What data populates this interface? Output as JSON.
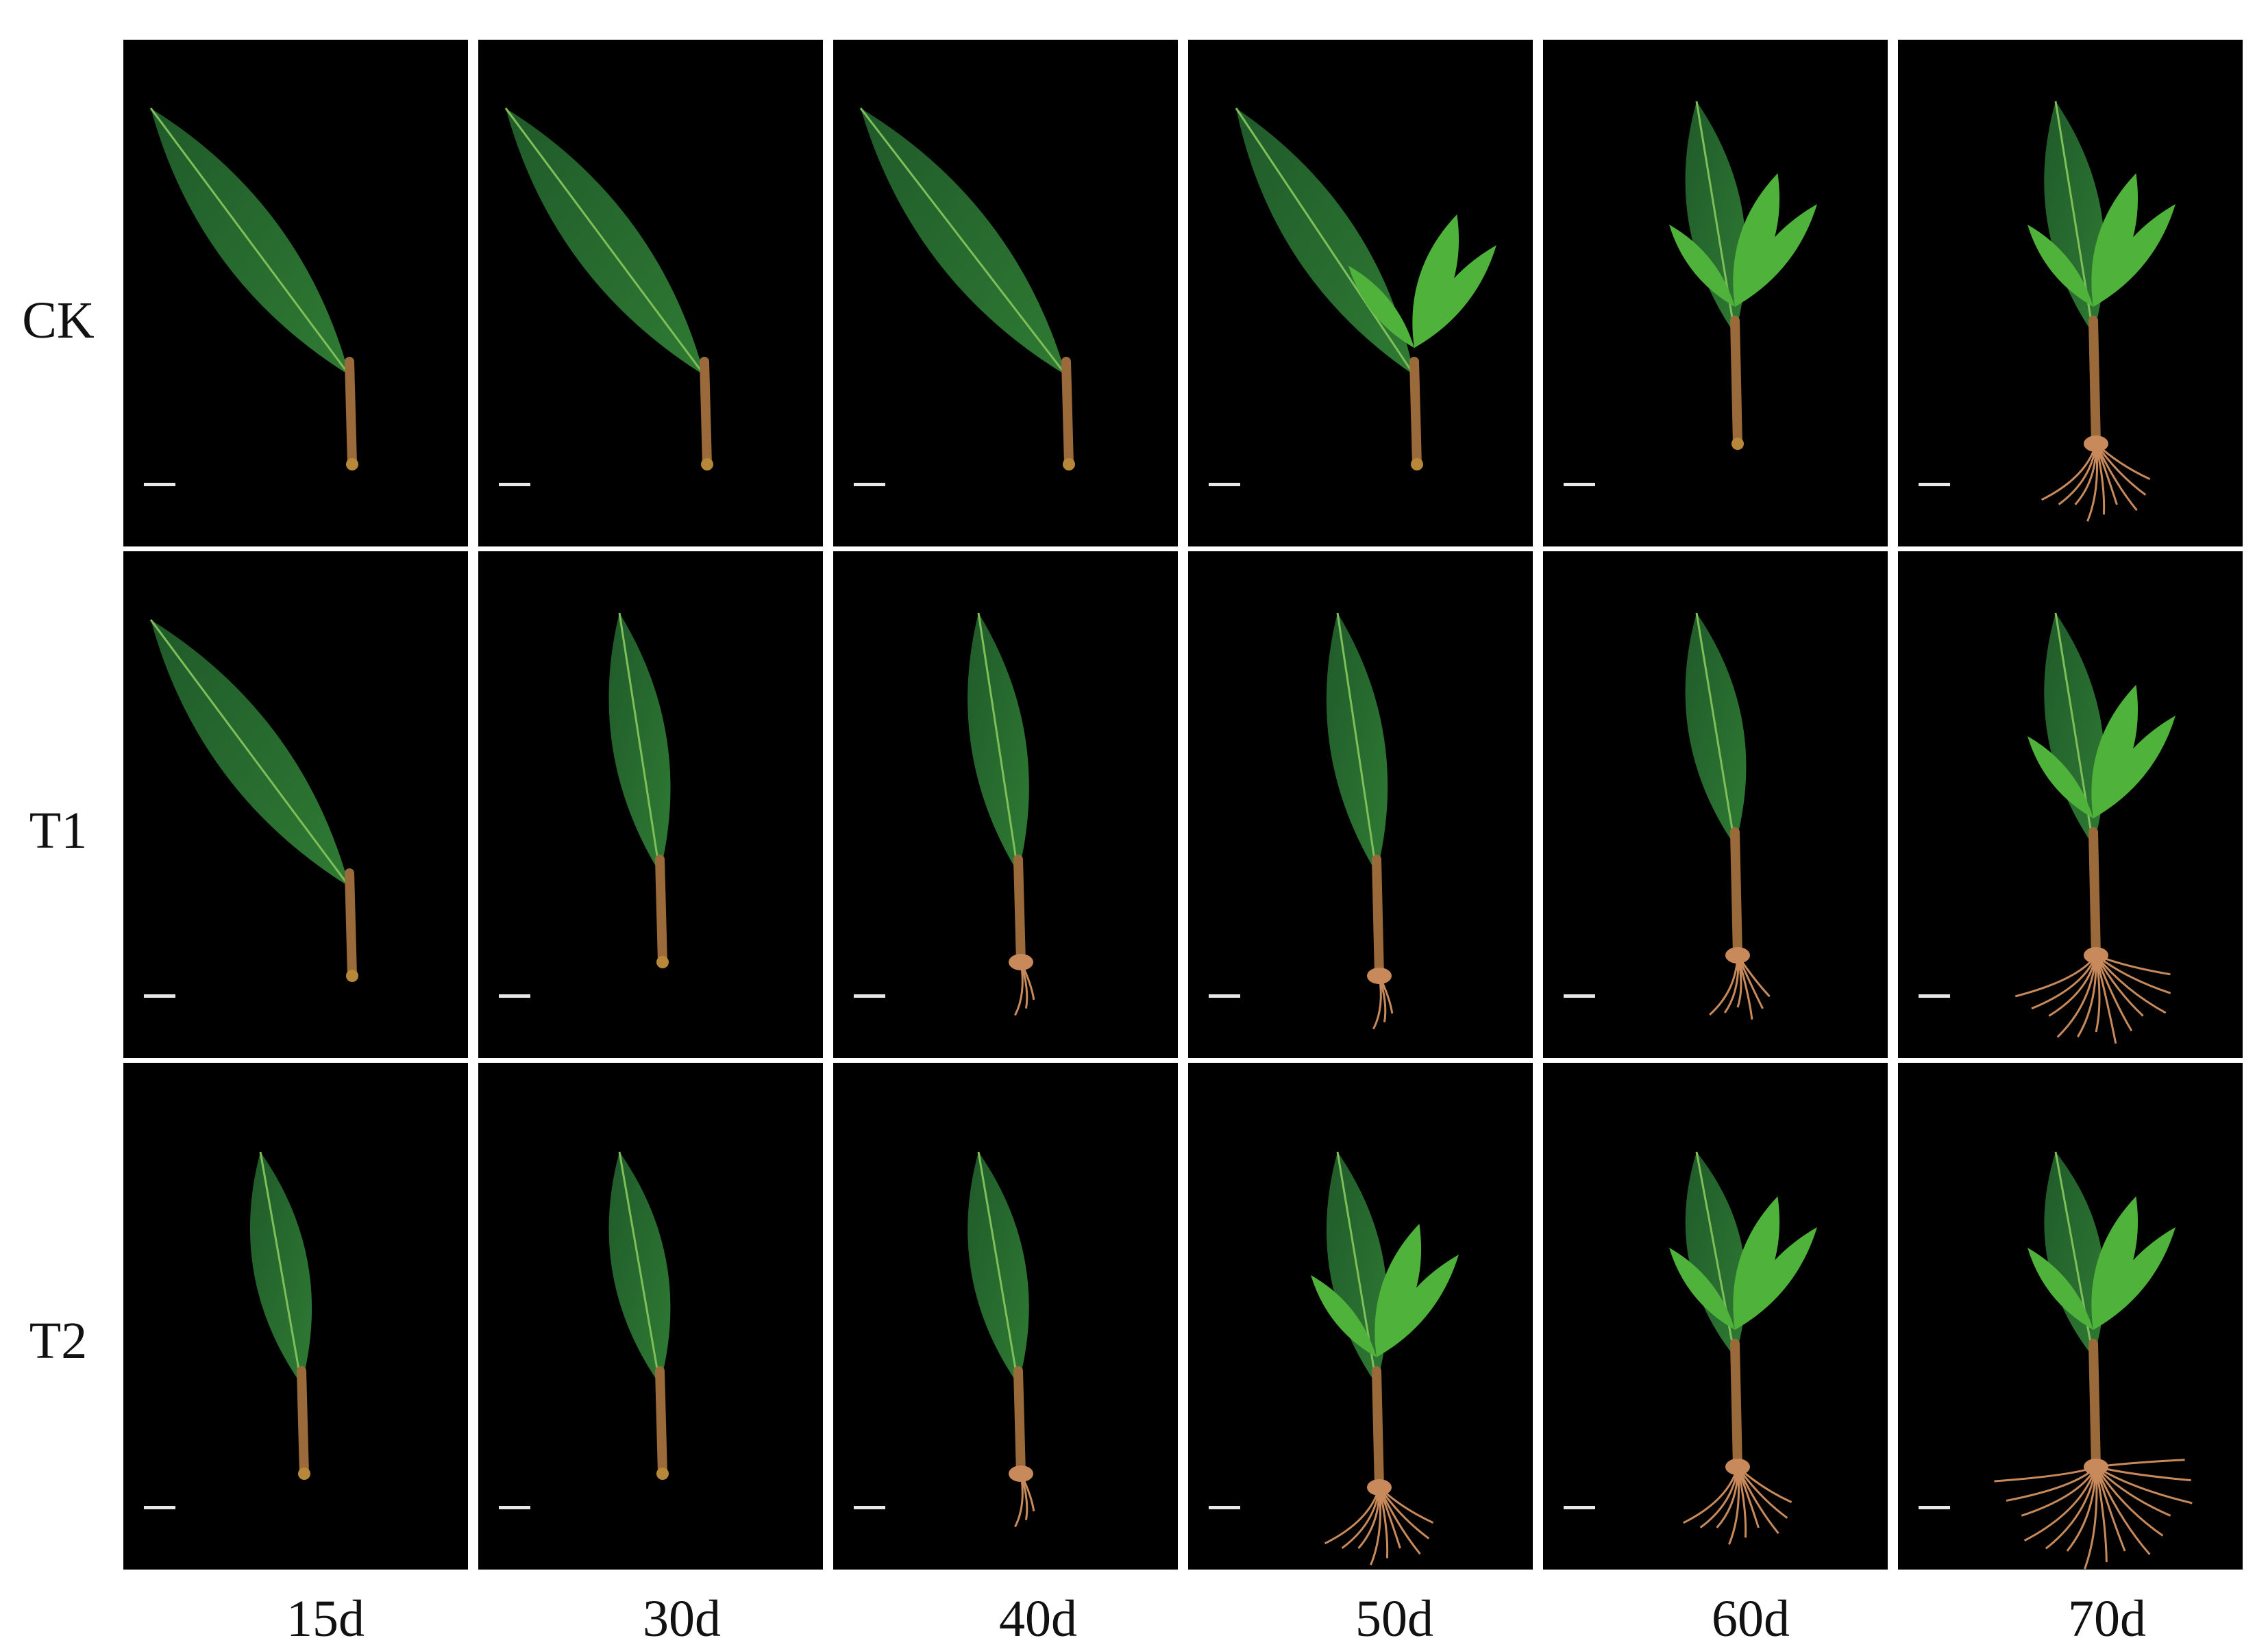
{
  "rows": [
    {
      "label": "CK"
    },
    {
      "label": "T1"
    },
    {
      "label": "T2"
    }
  ],
  "columns": [
    {
      "label": "15d"
    },
    {
      "label": "30d"
    },
    {
      "label": "40d"
    },
    {
      "label": "50d"
    },
    {
      "label": "60d"
    },
    {
      "label": "70d"
    }
  ],
  "colors": {
    "panel_background": "#000000",
    "leaf_dark": "#1f5a2a",
    "leaf_light": "#4fb23a",
    "stem": "#9a6a3a",
    "root": "#c88a5a",
    "scale_bar": "#e8e8e8"
  }
}
